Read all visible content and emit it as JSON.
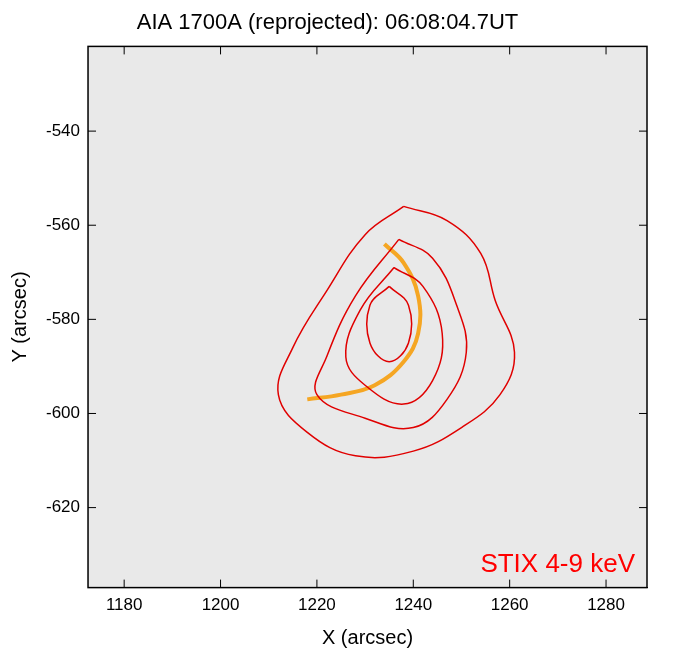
{
  "chart_data": {
    "type": "line",
    "title": "AIA 1700A (reprojected): 06:08:04.7UT",
    "x_label": "X (arcsec)",
    "y_label": "Y (arcsec)",
    "xlim": [
      1172.5,
      1288.5
    ],
    "ylim": [
      -637,
      -522
    ],
    "xticks": [
      1180,
      1200,
      1220,
      1240,
      1260,
      1280
    ],
    "yticks": [
      -620,
      -600,
      -580,
      -560,
      -540
    ],
    "grid": false,
    "series": [
      {
        "color": "#e00000",
        "line_style": "solid",
        "x": [
          1238,
          1247,
          1254,
          1257,
          1261,
          1258,
          1250,
          1240,
          1228,
          1218,
          1212,
          1215,
          1222,
          1230,
          1238
        ],
        "values": [
          -556,
          -559,
          -566,
          -576,
          -587,
          -596,
          -603,
          -608,
          -609,
          -604,
          -596,
          -586,
          -574,
          -562,
          -556
        ]
      },
      {
        "color": "#e00000",
        "line_style": "solid",
        "x": [
          1237,
          1244,
          1249,
          1251,
          1247,
          1240,
          1230,
          1220,
          1222,
          1228,
          1237
        ],
        "values": [
          -563,
          -567,
          -577,
          -587,
          -597,
          -603,
          -601,
          -596,
          -588,
          -575,
          -563
        ]
      },
      {
        "color": "#e00000",
        "line_style": "solid",
        "x": [
          1236,
          1242,
          1246,
          1244,
          1238,
          1230,
          1226,
          1229,
          1236
        ],
        "values": [
          -569,
          -573,
          -583,
          -593,
          -598,
          -594,
          -588,
          -578,
          -569
        ]
      },
      {
        "color": "#e00000",
        "line_style": "solid",
        "x": [
          1235,
          1239,
          1239,
          1235,
          1231,
          1231,
          1235
        ],
        "values": [
          -573,
          -577,
          -585,
          -589,
          -585,
          -577,
          -573
        ]
      },
      {
        "color": "#f5a623",
        "line_style": "solid",
        "x": [
          1234,
          1238,
          1241,
          1241,
          1238,
          1232,
          1225,
          1218
        ],
        "values": [
          -564,
          -568,
          -575,
          -583,
          -589,
          -594,
          -596,
          -597
        ]
      }
    ],
    "annotations": [
      {
        "text": "STIX 4-9 keV",
        "color": "#ff0000"
      }
    ]
  }
}
